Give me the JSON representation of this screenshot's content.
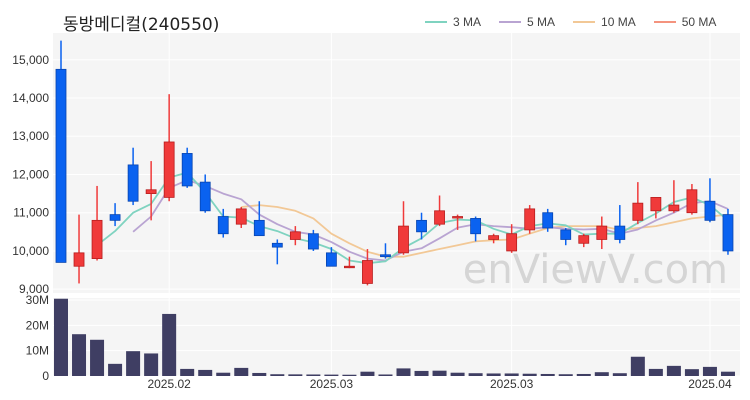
{
  "title": "동방메디컬(240550)",
  "watermark": "enViewV.com",
  "legend": [
    {
      "label": "3 MA",
      "color": "#7fd3c0"
    },
    {
      "label": "5 MA",
      "color": "#b9a4d2"
    },
    {
      "label": "10 MA",
      "color": "#f2c896"
    },
    {
      "label": "50 MA",
      "color": "#f4937e"
    }
  ],
  "colors": {
    "up": "#f03a3a",
    "down": "#0a62f0",
    "volume": "#3f3e63",
    "grid": "#e6e6e6",
    "panel": "#f5f5f5"
  },
  "chart_data": {
    "type": "candlestick",
    "title": "동방메디컬(240550)",
    "price_axis": {
      "min": 8900,
      "max": 15700,
      "ticks": [
        9000,
        10000,
        11000,
        12000,
        13000,
        14000,
        15000
      ],
      "tick_labels": [
        "9,000",
        "10,000",
        "11,000",
        "12,000",
        "13,000",
        "14,000",
        "15,000"
      ]
    },
    "volume_axis": {
      "min": 0,
      "max": 30000000,
      "ticks": [
        0,
        10000000,
        20000000,
        30000000
      ],
      "tick_labels": [
        "0",
        "10M",
        "20M",
        "30M"
      ]
    },
    "x_tick_labels": [
      {
        "index": 6,
        "label": "2025.02"
      },
      {
        "index": 15,
        "label": "2025.03"
      },
      {
        "index": 25,
        "label": "2025.03"
      },
      {
        "index": 36,
        "label": "2025.04"
      }
    ],
    "candles": [
      {
        "o": 14750,
        "h": 15500,
        "l": 9700,
        "c": 9700,
        "v": 30500000
      },
      {
        "o": 9600,
        "h": 10950,
        "l": 9150,
        "c": 9950,
        "v": 16500000
      },
      {
        "o": 9800,
        "h": 11700,
        "l": 9750,
        "c": 10800,
        "v": 14300000
      },
      {
        "o": 10950,
        "h": 11250,
        "l": 10650,
        "c": 10800,
        "v": 4800000
      },
      {
        "o": 12250,
        "h": 12700,
        "l": 11200,
        "c": 11300,
        "v": 9800000
      },
      {
        "o": 11500,
        "h": 12350,
        "l": 10800,
        "c": 11600,
        "v": 8900000
      },
      {
        "o": 11400,
        "h": 14100,
        "l": 11300,
        "c": 12850,
        "v": 24500000
      },
      {
        "o": 12550,
        "h": 12700,
        "l": 11650,
        "c": 11700,
        "v": 2800000
      },
      {
        "o": 11800,
        "h": 12000,
        "l": 11000,
        "c": 11050,
        "v": 2400000
      },
      {
        "o": 10900,
        "h": 11100,
        "l": 10350,
        "c": 10450,
        "v": 1300000
      },
      {
        "o": 10700,
        "h": 11150,
        "l": 10600,
        "c": 11100,
        "v": 3200000
      },
      {
        "o": 10800,
        "h": 11300,
        "l": 10400,
        "c": 10400,
        "v": 1200000
      },
      {
        "o": 10200,
        "h": 10300,
        "l": 9650,
        "c": 10100,
        "v": 700000
      },
      {
        "o": 10300,
        "h": 10650,
        "l": 10150,
        "c": 10500,
        "v": 650000
      },
      {
        "o": 10450,
        "h": 10550,
        "l": 10000,
        "c": 10050,
        "v": 600000
      },
      {
        "o": 9950,
        "h": 10100,
        "l": 9600,
        "c": 9600,
        "v": 550000
      },
      {
        "o": 9600,
        "h": 9850,
        "l": 9550,
        "c": 9600,
        "v": 500000
      },
      {
        "o": 9150,
        "h": 10050,
        "l": 9100,
        "c": 9750,
        "v": 1700000
      },
      {
        "o": 9900,
        "h": 10200,
        "l": 9800,
        "c": 9850,
        "v": 600000
      },
      {
        "o": 9950,
        "h": 11300,
        "l": 9900,
        "c": 10650,
        "v": 3000000
      },
      {
        "o": 10800,
        "h": 11000,
        "l": 10300,
        "c": 10500,
        "v": 2000000
      },
      {
        "o": 10700,
        "h": 11450,
        "l": 10650,
        "c": 11050,
        "v": 2100000
      },
      {
        "o": 10900,
        "h": 10950,
        "l": 10550,
        "c": 10900,
        "v": 1300000
      },
      {
        "o": 10850,
        "h": 10900,
        "l": 10250,
        "c": 10450,
        "v": 1100000
      },
      {
        "o": 10300,
        "h": 10450,
        "l": 10200,
        "c": 10400,
        "v": 1000000
      },
      {
        "o": 10000,
        "h": 10700,
        "l": 9950,
        "c": 10450,
        "v": 1000000
      },
      {
        "o": 10550,
        "h": 11200,
        "l": 10450,
        "c": 11100,
        "v": 900000
      },
      {
        "o": 11000,
        "h": 11100,
        "l": 10500,
        "c": 10600,
        "v": 800000
      },
      {
        "o": 10550,
        "h": 10600,
        "l": 10150,
        "c": 10300,
        "v": 700000
      },
      {
        "o": 10200,
        "h": 10450,
        "l": 10100,
        "c": 10400,
        "v": 800000
      },
      {
        "o": 10300,
        "h": 10900,
        "l": 10050,
        "c": 10650,
        "v": 1500000
      },
      {
        "o": 10650,
        "h": 11200,
        "l": 10200,
        "c": 10300,
        "v": 1100000
      },
      {
        "o": 10800,
        "h": 11800,
        "l": 10700,
        "c": 11250,
        "v": 7600000
      },
      {
        "o": 11050,
        "h": 11400,
        "l": 10850,
        "c": 11400,
        "v": 2800000
      },
      {
        "o": 11050,
        "h": 11850,
        "l": 11000,
        "c": 11200,
        "v": 4000000
      },
      {
        "o": 11000,
        "h": 11750,
        "l": 10950,
        "c": 11600,
        "v": 2700000
      },
      {
        "o": 11300,
        "h": 11900,
        "l": 10750,
        "c": 10800,
        "v": 3600000
      },
      {
        "o": 10950,
        "h": 11100,
        "l": 9900,
        "c": 10000,
        "v": 1700000
      }
    ],
    "ma3": [
      null,
      null,
      10150,
      10520,
      11000,
      11230,
      11920,
      12050,
      11530,
      10900,
      10870,
      10650,
      10520,
      10330,
      10220,
      10050,
      9750,
      9680,
      9730,
      10080,
      10330,
      10730,
      10820,
      10800,
      10580,
      10430,
      10650,
      10720,
      10670,
      10430,
      10450,
      10450,
      10730,
      10980,
      11280,
      11400,
      11200,
      10800
    ],
    "ma4": [
      null,
      null,
      null,
      null,
      10500,
      10900,
      11650,
      11850,
      11700,
      11500,
      11350,
      10950,
      10700,
      10500,
      10430,
      10230,
      9980,
      9800,
      9750,
      9980,
      10070,
      10330,
      10610,
      10700,
      10650,
      10620,
      10580,
      10620,
      10580,
      10560,
      10580,
      10450,
      10560,
      10800,
      11000,
      11250,
      11300,
      11100
    ],
    "ma10": [
      null,
      null,
      null,
      null,
      null,
      null,
      null,
      null,
      null,
      null,
      11150,
      11200,
      11150,
      11050,
      10850,
      10450,
      10200,
      9980,
      9850,
      9850,
      9950,
      10050,
      10150,
      10250,
      10280,
      10300,
      10450,
      10600,
      10650,
      10650,
      10650,
      10550,
      10600,
      10650,
      10750,
      10850,
      10900,
      10950
    ]
  }
}
